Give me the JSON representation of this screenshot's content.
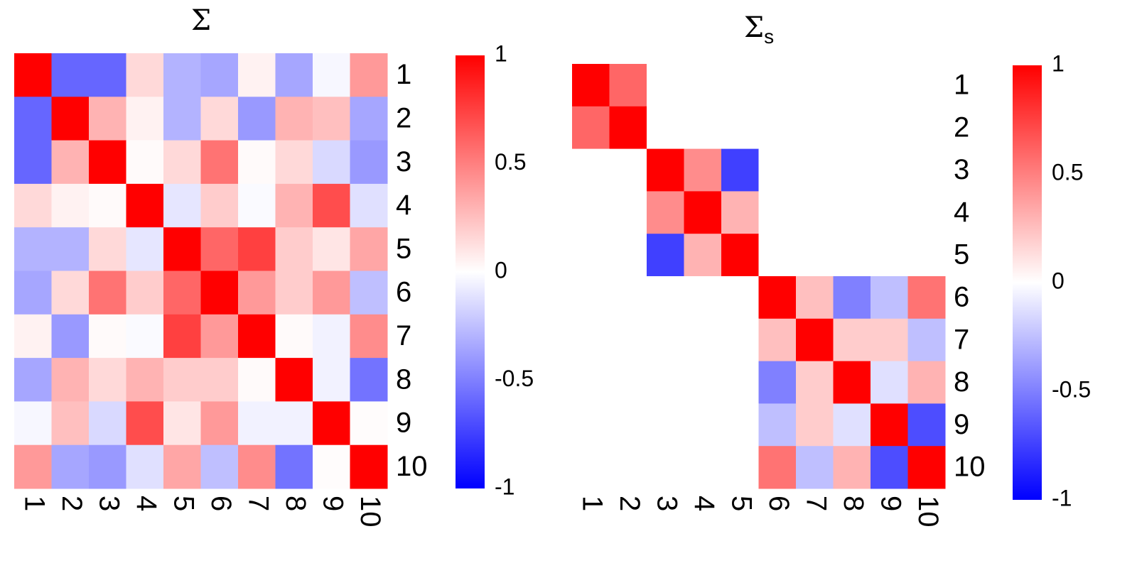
{
  "chart_data": [
    {
      "type": "heatmap",
      "title": "Σ",
      "categories": [
        "1",
        "2",
        "3",
        "4",
        "5",
        "6",
        "7",
        "8",
        "9",
        "10"
      ],
      "values": [
        [
          1,
          -0.6,
          -0.6,
          0.15,
          -0.3,
          -0.35,
          0.05,
          -0.35,
          -0.03,
          0.4
        ],
        [
          -0.6,
          1,
          0.3,
          0.05,
          -0.3,
          0.15,
          -0.4,
          0.3,
          0.25,
          -0.35
        ],
        [
          -0.6,
          0.3,
          1,
          0.02,
          0.15,
          0.55,
          0.02,
          0.15,
          -0.15,
          -0.4
        ],
        [
          0.15,
          0.05,
          0.02,
          1,
          -0.1,
          0.2,
          -0.02,
          0.3,
          0.7,
          -0.12
        ],
        [
          -0.3,
          -0.3,
          0.15,
          -0.1,
          1,
          0.6,
          0.75,
          0.2,
          0.1,
          0.35
        ],
        [
          -0.35,
          0.15,
          0.55,
          0.2,
          0.6,
          1,
          0.4,
          0.2,
          0.4,
          -0.25
        ],
        [
          0.05,
          -0.4,
          0.02,
          -0.02,
          0.75,
          0.4,
          1,
          0.02,
          -0.05,
          0.45
        ],
        [
          -0.35,
          0.3,
          0.15,
          0.3,
          0.2,
          0.2,
          0.02,
          1,
          -0.05,
          -0.55
        ],
        [
          -0.03,
          0.25,
          -0.15,
          0.7,
          0.1,
          0.4,
          -0.05,
          -0.05,
          1,
          0.01
        ],
        [
          0.4,
          -0.35,
          -0.4,
          -0.12,
          0.35,
          -0.25,
          0.45,
          -0.55,
          0.01,
          1
        ]
      ],
      "colormap": [
        "#0000ff",
        "#ffffff",
        "#ff0000"
      ],
      "zlim": [
        -1,
        1
      ],
      "zticks": [
        -1,
        -0.5,
        0,
        0.5,
        1
      ]
    },
    {
      "type": "heatmap",
      "title": "Σ",
      "title_subscript": "s",
      "categories": [
        "1",
        "2",
        "3",
        "4",
        "5",
        "6",
        "7",
        "8",
        "9",
        "10"
      ],
      "values": [
        [
          1,
          0.6,
          0,
          0,
          0,
          0,
          0,
          0,
          0,
          0
        ],
        [
          0.6,
          1,
          0,
          0,
          0,
          0,
          0,
          0,
          0,
          0
        ],
        [
          0,
          0,
          1,
          0.45,
          -0.75,
          0,
          0,
          0,
          0,
          0
        ],
        [
          0,
          0,
          0.45,
          1,
          0.3,
          0,
          0,
          0,
          0,
          0
        ],
        [
          0,
          0,
          -0.75,
          0.3,
          1,
          0,
          0,
          0,
          0,
          0
        ],
        [
          0,
          0,
          0,
          0,
          0,
          1,
          0.25,
          -0.5,
          -0.25,
          0.55
        ],
        [
          0,
          0,
          0,
          0,
          0,
          0.25,
          1,
          0.2,
          0.2,
          -0.25
        ],
        [
          0,
          0,
          0,
          0,
          0,
          -0.5,
          0.2,
          1,
          -0.12,
          0.3
        ],
        [
          0,
          0,
          0,
          0,
          0,
          -0.25,
          0.2,
          -0.12,
          1,
          -0.7
        ],
        [
          0,
          0,
          0,
          0,
          0,
          0.55,
          -0.25,
          0.3,
          -0.7,
          1
        ]
      ],
      "colormap": [
        "#0000ff",
        "#ffffff",
        "#ff0000"
      ],
      "zlim": [
        -1,
        1
      ],
      "zticks": [
        -1,
        -0.5,
        0,
        0.5,
        1
      ]
    }
  ]
}
